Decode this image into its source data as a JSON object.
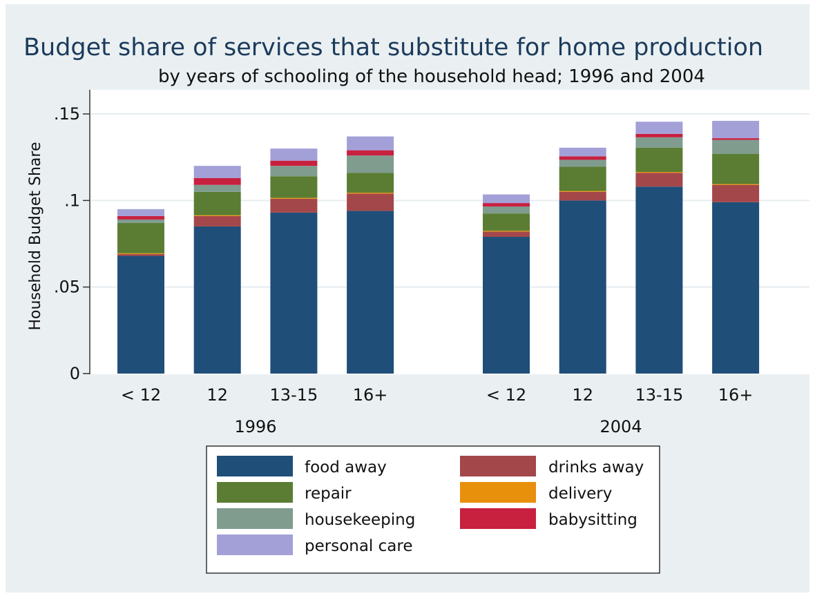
{
  "chart_data": {
    "type": "bar",
    "stacked": true,
    "title": "Budget share of services that substitute for home production",
    "subtitle": "by years of schooling of the household head; 1996 and 2004",
    "ylabel": "Household Budget Share",
    "ylim": [
      0,
      0.16
    ],
    "yticks": [
      {
        "value": 0,
        "label": "0"
      },
      {
        "value": 0.05,
        "label": ".05"
      },
      {
        "value": 0.1,
        "label": ".1"
      },
      {
        "value": 0.15,
        "label": ".15"
      }
    ],
    "grid": true,
    "legend_position": "bottom",
    "groups": [
      {
        "label": "1996",
        "categories": [
          "< 12",
          "12",
          "13-15",
          "16+"
        ]
      },
      {
        "label": "2004",
        "categories": [
          "< 12",
          "12",
          "13-15",
          "16+"
        ]
      }
    ],
    "series": [
      {
        "name": "food away",
        "color": "#1f4e79",
        "values": [
          [
            0.068,
            0.085,
            0.093,
            0.094
          ],
          [
            0.079,
            0.1,
            0.108,
            0.099
          ]
        ]
      },
      {
        "name": "drinks away",
        "color": "#a4474a",
        "values": [
          [
            0.001,
            0.006,
            0.008,
            0.01
          ],
          [
            0.003,
            0.005,
            0.008,
            0.01
          ]
        ]
      },
      {
        "name": "delivery",
        "color": "#e8900c",
        "values": [
          [
            0.0005,
            0.0005,
            0.0005,
            0.0005
          ],
          [
            0.0005,
            0.0005,
            0.0005,
            0.0005
          ]
        ]
      },
      {
        "name": "repair",
        "color": "#5a7d33",
        "values": [
          [
            0.0175,
            0.0135,
            0.0125,
            0.0115
          ],
          [
            0.01,
            0.014,
            0.014,
            0.0175
          ]
        ]
      },
      {
        "name": "housekeeping",
        "color": "#7f9c8f",
        "values": [
          [
            0.002,
            0.004,
            0.006,
            0.01
          ],
          [
            0.004,
            0.004,
            0.006,
            0.008
          ]
        ]
      },
      {
        "name": "babysitting",
        "color": "#c8203f",
        "values": [
          [
            0.002,
            0.004,
            0.003,
            0.003
          ],
          [
            0.002,
            0.002,
            0.002,
            0.001
          ]
        ]
      },
      {
        "name": "personal care",
        "color": "#a3a0d8",
        "values": [
          [
            0.004,
            0.007,
            0.007,
            0.008
          ],
          [
            0.005,
            0.005,
            0.007,
            0.01
          ]
        ]
      }
    ],
    "legend": [
      {
        "name": "food away",
        "color": "#1f4e79"
      },
      {
        "name": "drinks away",
        "color": "#a4474a"
      },
      {
        "name": "repair",
        "color": "#5a7d33"
      },
      {
        "name": "delivery",
        "color": "#e8900c"
      },
      {
        "name": "housekeeping",
        "color": "#7f9c8f"
      },
      {
        "name": "babysitting",
        "color": "#c8203f"
      },
      {
        "name": "personal care",
        "color": "#a3a0d8"
      }
    ]
  }
}
